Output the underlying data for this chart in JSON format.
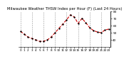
{
  "title": "Milwaukee Weather THSW Index per Hour (F) (Last 24 Hours)",
  "hours": [
    0,
    1,
    2,
    3,
    4,
    5,
    6,
    7,
    8,
    9,
    10,
    11,
    12,
    13,
    14,
    15,
    16,
    17,
    18,
    19,
    20,
    21,
    22,
    23
  ],
  "values": [
    52,
    48,
    44,
    42,
    40,
    38,
    38,
    40,
    44,
    50,
    56,
    62,
    68,
    75,
    72,
    63,
    70,
    64,
    57,
    53,
    51,
    50,
    54,
    55
  ],
  "line_color": "#cc0000",
  "marker_color": "#000000",
  "marker_style": "o",
  "marker_size": 1.2,
  "line_style": "--",
  "line_width": 0.8,
  "background_color": "#ffffff",
  "grid_color": "#999999",
  "grid_positions": [
    0,
    3,
    6,
    9,
    12,
    15,
    18,
    21
  ],
  "ylim": [
    30,
    80
  ],
  "ytick_values": [
    40,
    50,
    60,
    70,
    80
  ],
  "title_fontsize": 3.8,
  "tick_fontsize": 3.0
}
